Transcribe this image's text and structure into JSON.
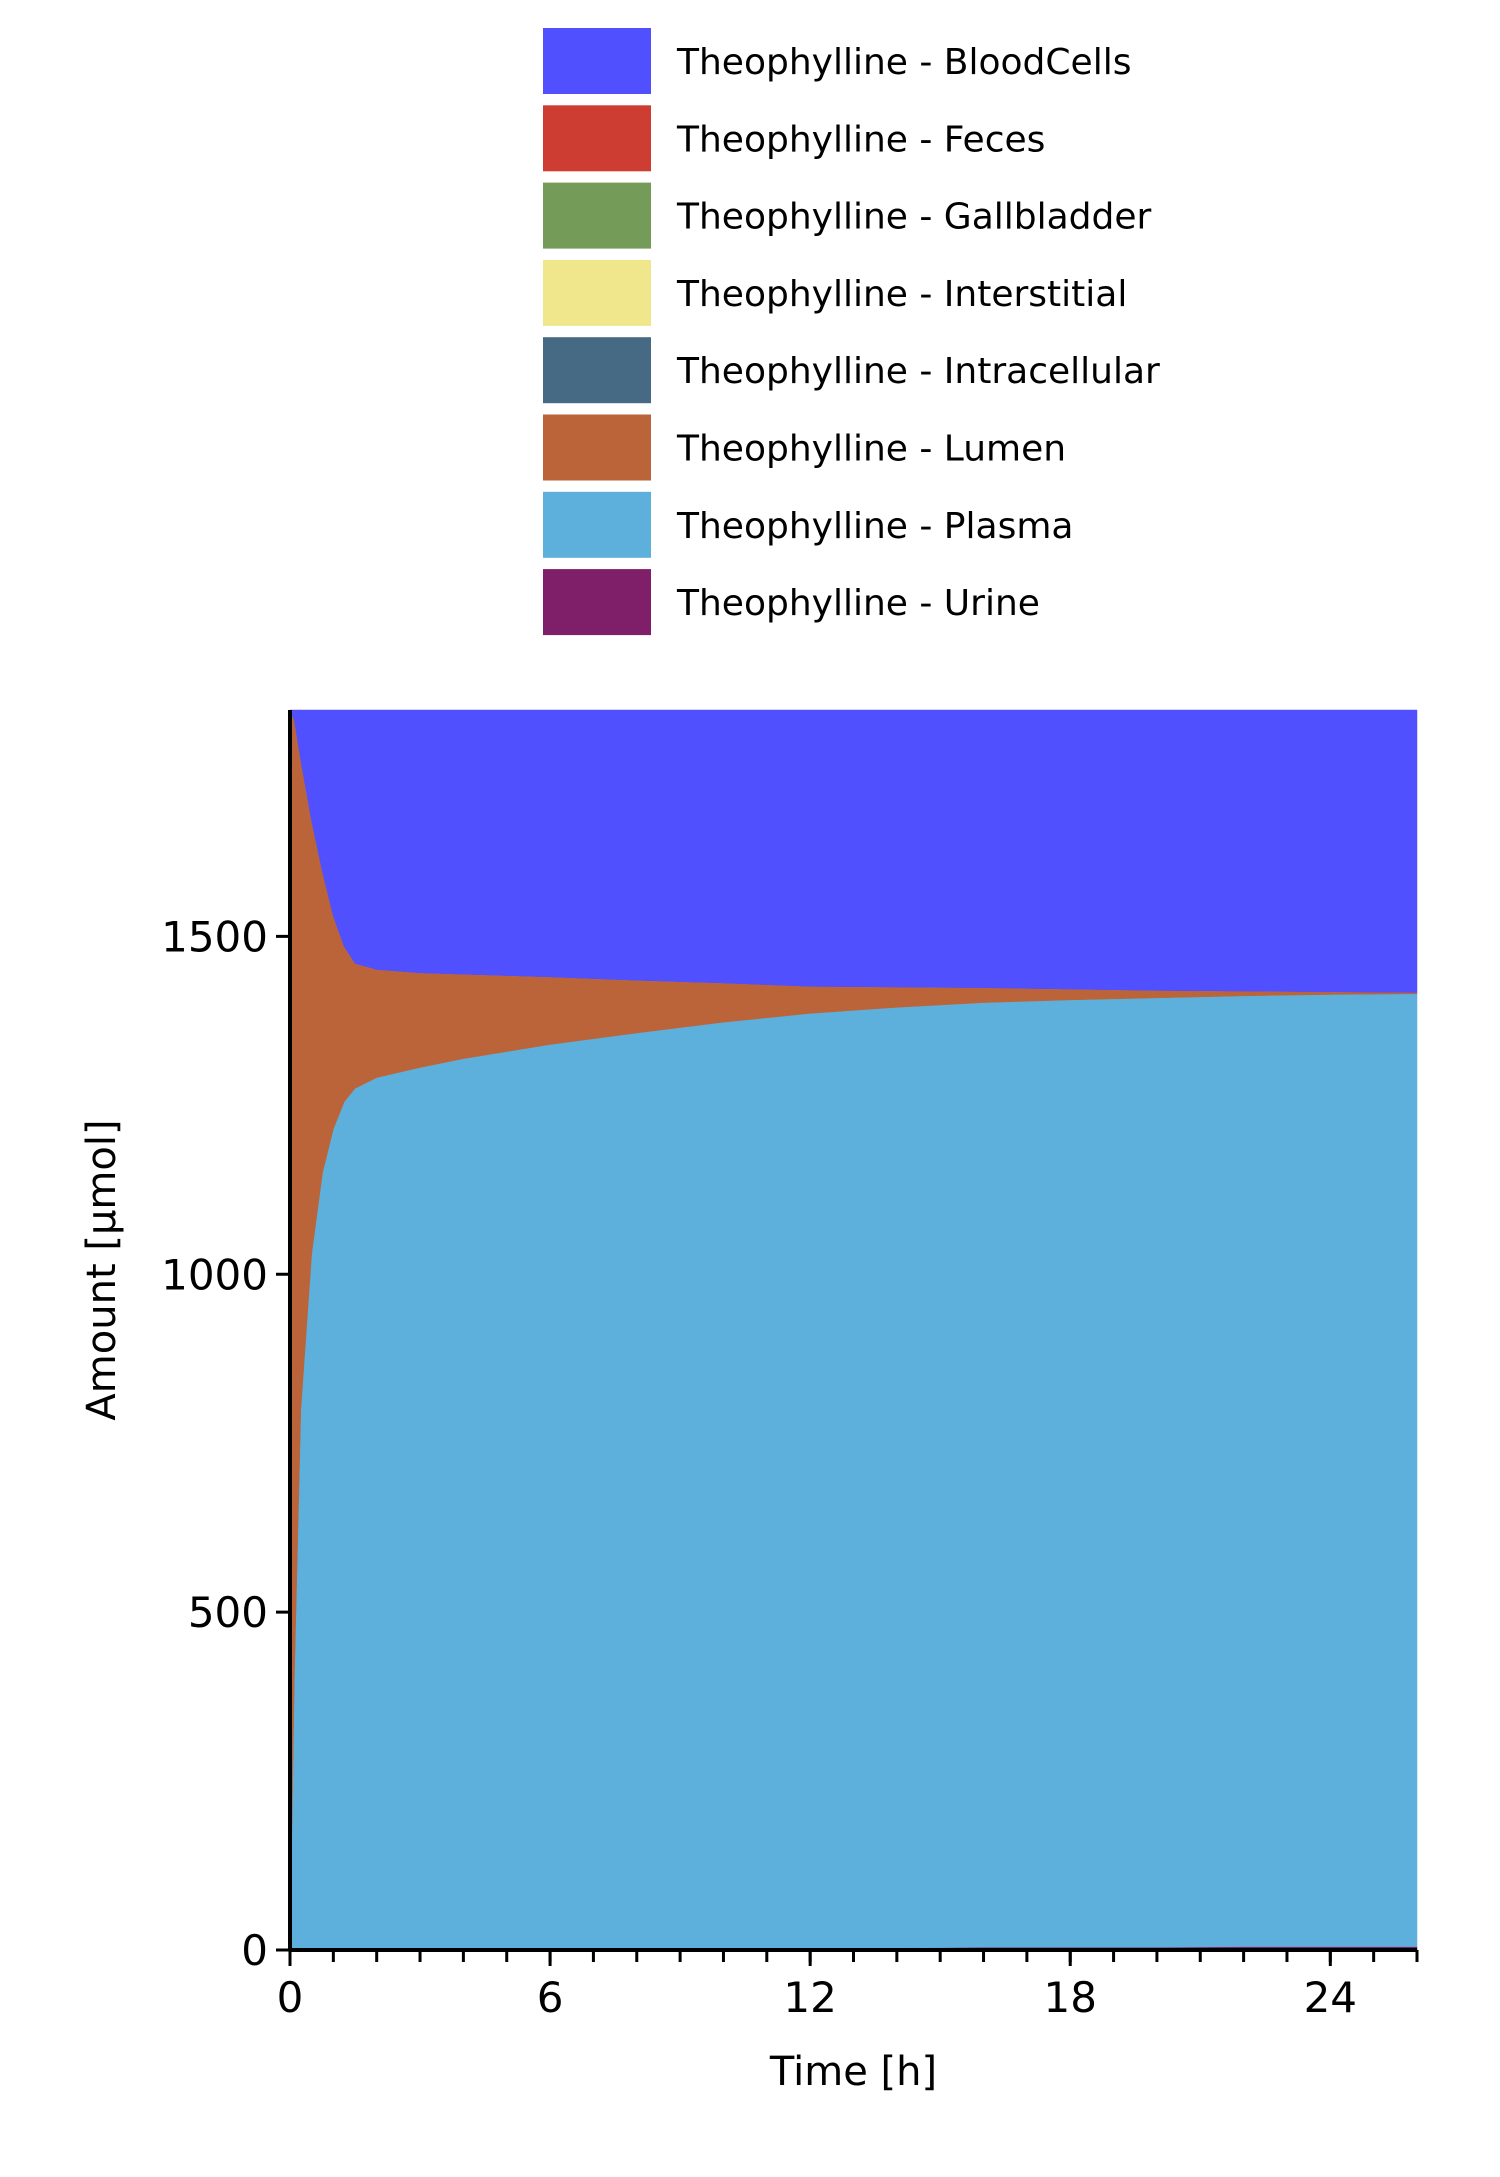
{
  "chart_data": {
    "type": "area",
    "stacked": true,
    "title": "",
    "xlabel": "Time [h]",
    "ylabel": "Amount [µmol]",
    "xlim": [
      0,
      26
    ],
    "ylim": [
      0,
      1835
    ],
    "xticks": [
      0,
      6,
      12,
      18,
      24
    ],
    "yticks": [
      0,
      500,
      1000,
      1500
    ],
    "grid": false,
    "legend_position": "top",
    "x": [
      0,
      0.1,
      0.25,
      0.5,
      0.75,
      1,
      1.25,
      1.5,
      2,
      3,
      4,
      6,
      8,
      10,
      12,
      14,
      16,
      18,
      20,
      22,
      24,
      26
    ],
    "series": [
      {
        "name": "Theophylline - Urine",
        "color": "#7f1f69",
        "values": [
          0,
          0,
          0,
          0,
          0,
          0,
          0,
          0,
          1,
          1,
          1,
          2,
          2,
          3,
          3,
          3,
          4,
          4,
          4,
          5,
          5,
          5
        ]
      },
      {
        "name": "Theophylline - Plasma",
        "color": "#5dafdc",
        "values": [
          0,
          400,
          800,
          1030,
          1150,
          1215,
          1255,
          1275,
          1290,
          1305,
          1318,
          1338,
          1355,
          1370,
          1383,
          1392,
          1398,
          1402,
          1405,
          1407,
          1409,
          1410
        ]
      },
      {
        "name": "Theophylline - Lumen",
        "color": "#bb6439",
        "values": [
          1835,
          1420,
          960,
          640,
          445,
          315,
          230,
          185,
          160,
          140,
          125,
          100,
          78,
          58,
          40,
          30,
          22,
          16,
          11,
          7,
          4,
          2
        ]
      },
      {
        "name": "Theophylline - Intracellular",
        "color": "#476a84",
        "values": [
          0,
          0,
          0,
          0,
          0,
          0,
          0,
          0,
          0,
          0,
          0,
          0,
          0,
          0,
          0,
          0,
          0,
          0,
          0,
          0,
          0,
          0
        ]
      },
      {
        "name": "Theophylline - Interstitial",
        "color": "#f0e68c",
        "values": [
          0,
          0,
          0,
          0,
          0,
          0,
          0,
          0,
          0,
          0,
          0,
          0,
          0,
          0,
          0,
          0,
          0,
          0,
          0,
          0,
          0,
          0
        ]
      },
      {
        "name": "Theophylline - Gallbladder",
        "color": "#749b58",
        "values": [
          0,
          0,
          0,
          0,
          0,
          0,
          0,
          0,
          0,
          0,
          0,
          0,
          0,
          0,
          0,
          0,
          0,
          0,
          0,
          0,
          0,
          0
        ]
      },
      {
        "name": "Theophylline - Feces",
        "color": "#ce3d32",
        "values": [
          0,
          0,
          0,
          0,
          0,
          0,
          0,
          0,
          0,
          0,
          0,
          0,
          0,
          0,
          0,
          0,
          0,
          0,
          0,
          0,
          0,
          0
        ]
      },
      {
        "name": "Theophylline - BloodCells",
        "color": "#5050ff",
        "values": [
          0,
          15,
          75,
          165,
          240,
          305,
          350,
          375,
          384,
          389,
          391,
          395,
          400,
          404,
          409,
          410,
          411,
          413,
          415,
          416,
          417,
          418
        ]
      }
    ],
    "legend": [
      {
        "label": "Theophylline - BloodCells",
        "color": "#5050ff"
      },
      {
        "label": "Theophylline - Feces",
        "color": "#ce3d32"
      },
      {
        "label": "Theophylline - Gallbladder",
        "color": "#749b58"
      },
      {
        "label": "Theophylline - Interstitial",
        "color": "#f0e68c"
      },
      {
        "label": "Theophylline - Intracellular",
        "color": "#476a84"
      },
      {
        "label": "Theophylline - Lumen",
        "color": "#bb6439"
      },
      {
        "label": "Theophylline - Plasma",
        "color": "#5dafdc"
      },
      {
        "label": "Theophylline - Urine",
        "color": "#7f1f69"
      }
    ]
  }
}
